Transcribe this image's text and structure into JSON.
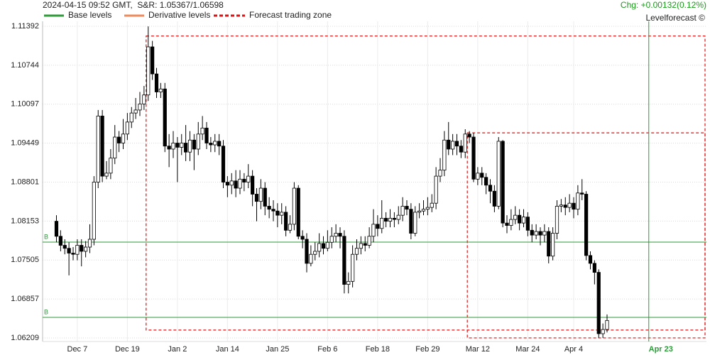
{
  "chart_data": {
    "type": "candlestick",
    "title": "2024-04-15 09:52 GMT,  S&R: 1.05367/1.06598",
    "change": "Chg: +0.00132(0.12%)",
    "brand": "Levelforecast ©",
    "legend": [
      {
        "name": "Base levels",
        "color": "#2e9a3a",
        "style": "solid"
      },
      {
        "name": "Derivative levels",
        "color": "#f08a5d",
        "style": "solid"
      },
      {
        "name": "Forecast trading zone",
        "color": "#e01010",
        "style": "dashed"
      }
    ],
    "categories": [
      null,
      null,
      null,
      null,
      null,
      "Dec 7",
      null,
      null,
      null,
      null,
      null,
      null,
      null,
      null,
      null,
      null,
      null,
      "Dec 19",
      null,
      null,
      null,
      null,
      null,
      null,
      null,
      null,
      null,
      null,
      null,
      "Jan 2",
      null,
      null,
      null,
      null,
      null,
      null,
      null,
      null,
      null,
      null,
      null,
      "Jan 14",
      null,
      null,
      null,
      null,
      null,
      null,
      null,
      null,
      null,
      null,
      null,
      "Jan 25",
      null,
      null,
      null,
      null,
      null,
      null,
      null,
      null,
      null,
      null,
      null,
      "Feb 6",
      null,
      null,
      null,
      null,
      null,
      null,
      null,
      null,
      null,
      null,
      null,
      "Feb 18",
      null,
      null,
      null,
      null,
      null,
      null,
      null,
      null,
      null,
      null,
      null,
      "Feb 29",
      null,
      null,
      null,
      null,
      null,
      null,
      null,
      null,
      null,
      null,
      null,
      "Mar 12",
      null,
      null,
      null,
      null,
      null,
      null,
      null,
      null,
      null,
      null,
      null,
      "Mar 24",
      null,
      null,
      null,
      null,
      null,
      null,
      null,
      null,
      null,
      null,
      "Apr 4",
      null,
      null,
      null,
      null,
      null,
      null,
      null,
      null,
      null,
      null,
      null,
      null,
      null,
      null,
      null,
      null,
      null,
      "Apr 23",
      null,
      null,
      null,
      null,
      null,
      null,
      null,
      null,
      null,
      null,
      null,
      null,
      null
    ],
    "open": [
      1.0815,
      1.079,
      1.0775,
      1.077,
      1.0762,
      1.076,
      1.0775,
      1.0765,
      1.0772,
      1.0785,
      1.088,
      1.099,
      1.089,
      1.0895,
      1.092,
      1.0955,
      1.0945,
      1.096,
      1.098,
      1.0995,
      1.1,
      1.101,
      1.1025,
      1.1105,
      1.106,
      1.103,
      1.1035,
      1.094,
      1.0935,
      1.0945,
      1.0938,
      1.0945,
      1.093,
      1.095,
      1.0935,
      1.096,
      1.097,
      1.0945,
      1.0942,
      1.0948,
      1.094,
      1.088,
      1.0875,
      1.0882,
      1.087,
      1.0885,
      1.088,
      1.089,
      1.086,
      1.0848,
      1.087,
      1.084,
      1.0835,
      1.0832,
      1.0825,
      1.083,
      1.08,
      1.081,
      1.087,
      1.079,
      1.0785,
      1.0745,
      1.076,
      1.0765,
      1.0778,
      1.077,
      1.078,
      1.079,
      1.0795,
      1.079,
      1.071,
      1.0715,
      1.076,
      1.077,
      1.0778,
      1.0775,
      1.079,
      1.081,
      1.0803,
      1.082,
      1.0815,
      1.082,
      1.0818,
      1.0825,
      1.084,
      1.0835,
      1.0795,
      1.083,
      1.0832,
      1.0835,
      1.0838,
      1.0845,
      1.089,
      1.09,
      1.095,
      1.0935,
      1.0948,
      1.094,
      1.093,
      1.096,
      1.0955,
      1.0885,
      1.0895,
      1.0888,
      1.0875,
      1.0865,
      1.084,
      1.0948,
      1.0812,
      1.0808,
      1.0818,
      1.0825,
      1.0812,
      1.0822,
      1.08,
      1.0792,
      1.0798,
      1.0792,
      1.0798,
      1.0757,
      1.0795,
      1.084,
      1.0842,
      1.0838,
      1.0845,
      1.0835,
      1.0862,
      1.086,
      1.0758,
      1.0745,
      1.073,
      1.0628,
      1.0635,
      null,
      null,
      null,
      null,
      null,
      null,
      null,
      null,
      null,
      null,
      null,
      null,
      null,
      null,
      null,
      null,
      null,
      null,
      null,
      null,
      null,
      null,
      null
    ],
    "high": [
      1.0825,
      1.08,
      1.0785,
      1.078,
      1.0772,
      1.0785,
      1.0785,
      1.0782,
      1.081,
      1.089,
      1.1,
      1.1,
      1.0915,
      1.0935,
      1.0975,
      1.0965,
      1.0985,
      1.0995,
      1.1005,
      1.102,
      1.103,
      1.104,
      1.1139,
      1.1115,
      1.107,
      1.1045,
      1.1045,
      1.096,
      1.0965,
      1.0955,
      1.096,
      1.0975,
      1.0965,
      1.096,
      1.098,
      1.099,
      1.098,
      1.0955,
      1.096,
      1.096,
      1.095,
      1.089,
      1.0895,
      1.09,
      1.09,
      1.0895,
      1.091,
      1.09,
      1.087,
      1.0885,
      1.088,
      1.0855,
      1.085,
      1.0845,
      1.0845,
      1.084,
      1.0825,
      1.088,
      1.0875,
      1.08,
      1.0795,
      1.0775,
      1.078,
      1.0795,
      1.079,
      1.08,
      1.0805,
      1.081,
      1.0805,
      1.08,
      1.073,
      1.0775,
      1.0785,
      1.079,
      1.079,
      1.0805,
      1.0835,
      1.0825,
      1.085,
      1.083,
      1.0835,
      1.083,
      1.084,
      1.0855,
      1.085,
      1.0845,
      1.084,
      1.0845,
      1.085,
      1.0855,
      1.086,
      1.0905,
      1.092,
      1.0965,
      1.098,
      1.096,
      1.096,
      1.095,
      1.0968,
      1.0965,
      1.0962,
      1.0905,
      1.0905,
      1.0895,
      1.0885,
      1.0875,
      1.0955,
      1.095,
      1.0825,
      1.0835,
      1.084,
      1.0835,
      1.0835,
      1.083,
      1.081,
      1.081,
      1.0805,
      1.081,
      1.0805,
      1.0805,
      1.085,
      1.0852,
      1.0855,
      1.086,
      1.0855,
      1.0875,
      1.0885,
      1.0865,
      1.0765,
      1.075,
      1.0735,
      1.0645,
      1.066,
      null,
      null,
      null,
      null,
      null,
      null,
      null,
      null,
      null,
      null,
      null,
      null,
      null,
      null,
      null,
      null,
      null,
      null,
      null,
      null,
      null,
      null,
      null
    ],
    "low": [
      1.078,
      1.0765,
      1.076,
      1.0725,
      1.075,
      1.075,
      1.074,
      1.0755,
      1.0762,
      1.0775,
      1.087,
      1.088,
      1.0885,
      1.0885,
      1.091,
      1.093,
      1.0935,
      1.095,
      1.097,
      1.0985,
      1.099,
      1.1,
      1.1015,
      1.105,
      1.102,
      1.102,
      1.093,
      1.0905,
      1.092,
      1.088,
      1.0925,
      1.0915,
      1.0915,
      1.09,
      1.0925,
      1.095,
      1.0935,
      1.093,
      1.093,
      1.0925,
      1.087,
      1.0855,
      1.086,
      1.0855,
      1.086,
      1.0865,
      1.087,
      1.084,
      1.0815,
      1.0835,
      1.0825,
      1.082,
      1.0815,
      1.0805,
      1.081,
      1.079,
      1.0795,
      1.08,
      1.0785,
      1.077,
      1.073,
      1.074,
      1.075,
      1.0755,
      1.076,
      1.0765,
      1.077,
      1.078,
      1.077,
      1.0695,
      1.0695,
      1.0705,
      1.075,
      1.076,
      1.0765,
      1.077,
      1.078,
      1.079,
      1.0795,
      1.0805,
      1.0805,
      1.0805,
      1.081,
      1.0815,
      1.0825,
      1.0785,
      1.079,
      1.082,
      1.0825,
      1.0825,
      1.083,
      1.0835,
      1.088,
      1.089,
      1.0925,
      1.0925,
      1.0925,
      1.092,
      1.092,
      1.0945,
      1.088,
      1.0875,
      1.0875,
      1.086,
      1.0845,
      1.083,
      1.0835,
      1.0805,
      1.0795,
      1.08,
      1.081,
      1.08,
      1.0805,
      1.079,
      1.078,
      1.0785,
      1.0775,
      1.078,
      1.0745,
      1.075,
      1.0785,
      1.083,
      1.0825,
      1.083,
      1.082,
      1.0825,
      1.085,
      1.075,
      1.0735,
      1.071,
      1.0621,
      1.0621,
      1.063,
      null,
      null,
      null,
      null,
      null,
      null,
      null,
      null,
      null,
      null,
      null,
      null,
      null,
      null,
      null,
      null,
      null,
      null,
      null,
      null,
      null,
      null,
      null
    ],
    "close": [
      1.079,
      1.0775,
      1.077,
      1.0762,
      1.076,
      1.0775,
      1.0765,
      1.0772,
      1.0785,
      1.088,
      1.099,
      1.089,
      1.0895,
      1.092,
      1.0955,
      1.0945,
      1.096,
      1.098,
      1.0995,
      1.1,
      1.101,
      1.1025,
      1.1105,
      1.106,
      1.103,
      1.1035,
      1.094,
      1.0935,
      1.0945,
      1.0938,
      1.0945,
      1.093,
      1.095,
      1.0935,
      1.096,
      1.097,
      1.0945,
      1.0942,
      1.0948,
      1.094,
      1.088,
      1.0875,
      1.0882,
      1.087,
      1.0885,
      1.088,
      1.089,
      1.086,
      1.0848,
      1.087,
      1.084,
      1.0835,
      1.0832,
      1.0825,
      1.083,
      1.08,
      1.081,
      1.087,
      1.079,
      1.0785,
      1.0745,
      1.076,
      1.0765,
      1.0778,
      1.077,
      1.078,
      1.079,
      1.0795,
      1.079,
      1.071,
      1.0715,
      1.076,
      1.077,
      1.0778,
      1.0775,
      1.079,
      1.081,
      1.0803,
      1.082,
      1.0815,
      1.082,
      1.0818,
      1.0825,
      1.084,
      1.0835,
      1.0795,
      1.083,
      1.0832,
      1.0835,
      1.0838,
      1.0845,
      1.089,
      1.09,
      1.095,
      1.0935,
      1.0948,
      1.094,
      1.093,
      1.096,
      1.0955,
      1.0885,
      1.0895,
      1.0888,
      1.0875,
      1.0865,
      1.084,
      1.0948,
      1.0812,
      1.0808,
      1.0818,
      1.0825,
      1.0812,
      1.0822,
      1.08,
      1.0792,
      1.0798,
      1.0792,
      1.0798,
      1.0757,
      1.0795,
      1.084,
      1.0842,
      1.0838,
      1.0845,
      1.0835,
      1.0862,
      1.086,
      1.0758,
      1.0745,
      1.073,
      1.0628,
      1.0635,
      1.065,
      null,
      null,
      null,
      null,
      null,
      null,
      null,
      null,
      null,
      null,
      null,
      null,
      null,
      null,
      null,
      null,
      null,
      null,
      null,
      null,
      null,
      null,
      null
    ],
    "up_color": "#ffffff",
    "down_color": "#000000",
    "ylim": [
      1.0615,
      1.11475
    ],
    "yticks": [
      1.06209,
      1.06857,
      1.07505,
      1.08153,
      1.08801,
      1.09449,
      1.10097,
      1.10744,
      1.11392
    ],
    "grid": true,
    "base_levels": [
      {
        "label": "B",
        "value": 1.07803
      },
      {
        "label": "B",
        "value": 1.06552
      }
    ],
    "forecast_date_index": 142,
    "zones": [
      {
        "start": 22,
        "top": 1.1123,
        "bottom": 1.0634
      },
      {
        "start": 99,
        "top": 1.0962,
        "bottom": 1.0621
      }
    ]
  }
}
